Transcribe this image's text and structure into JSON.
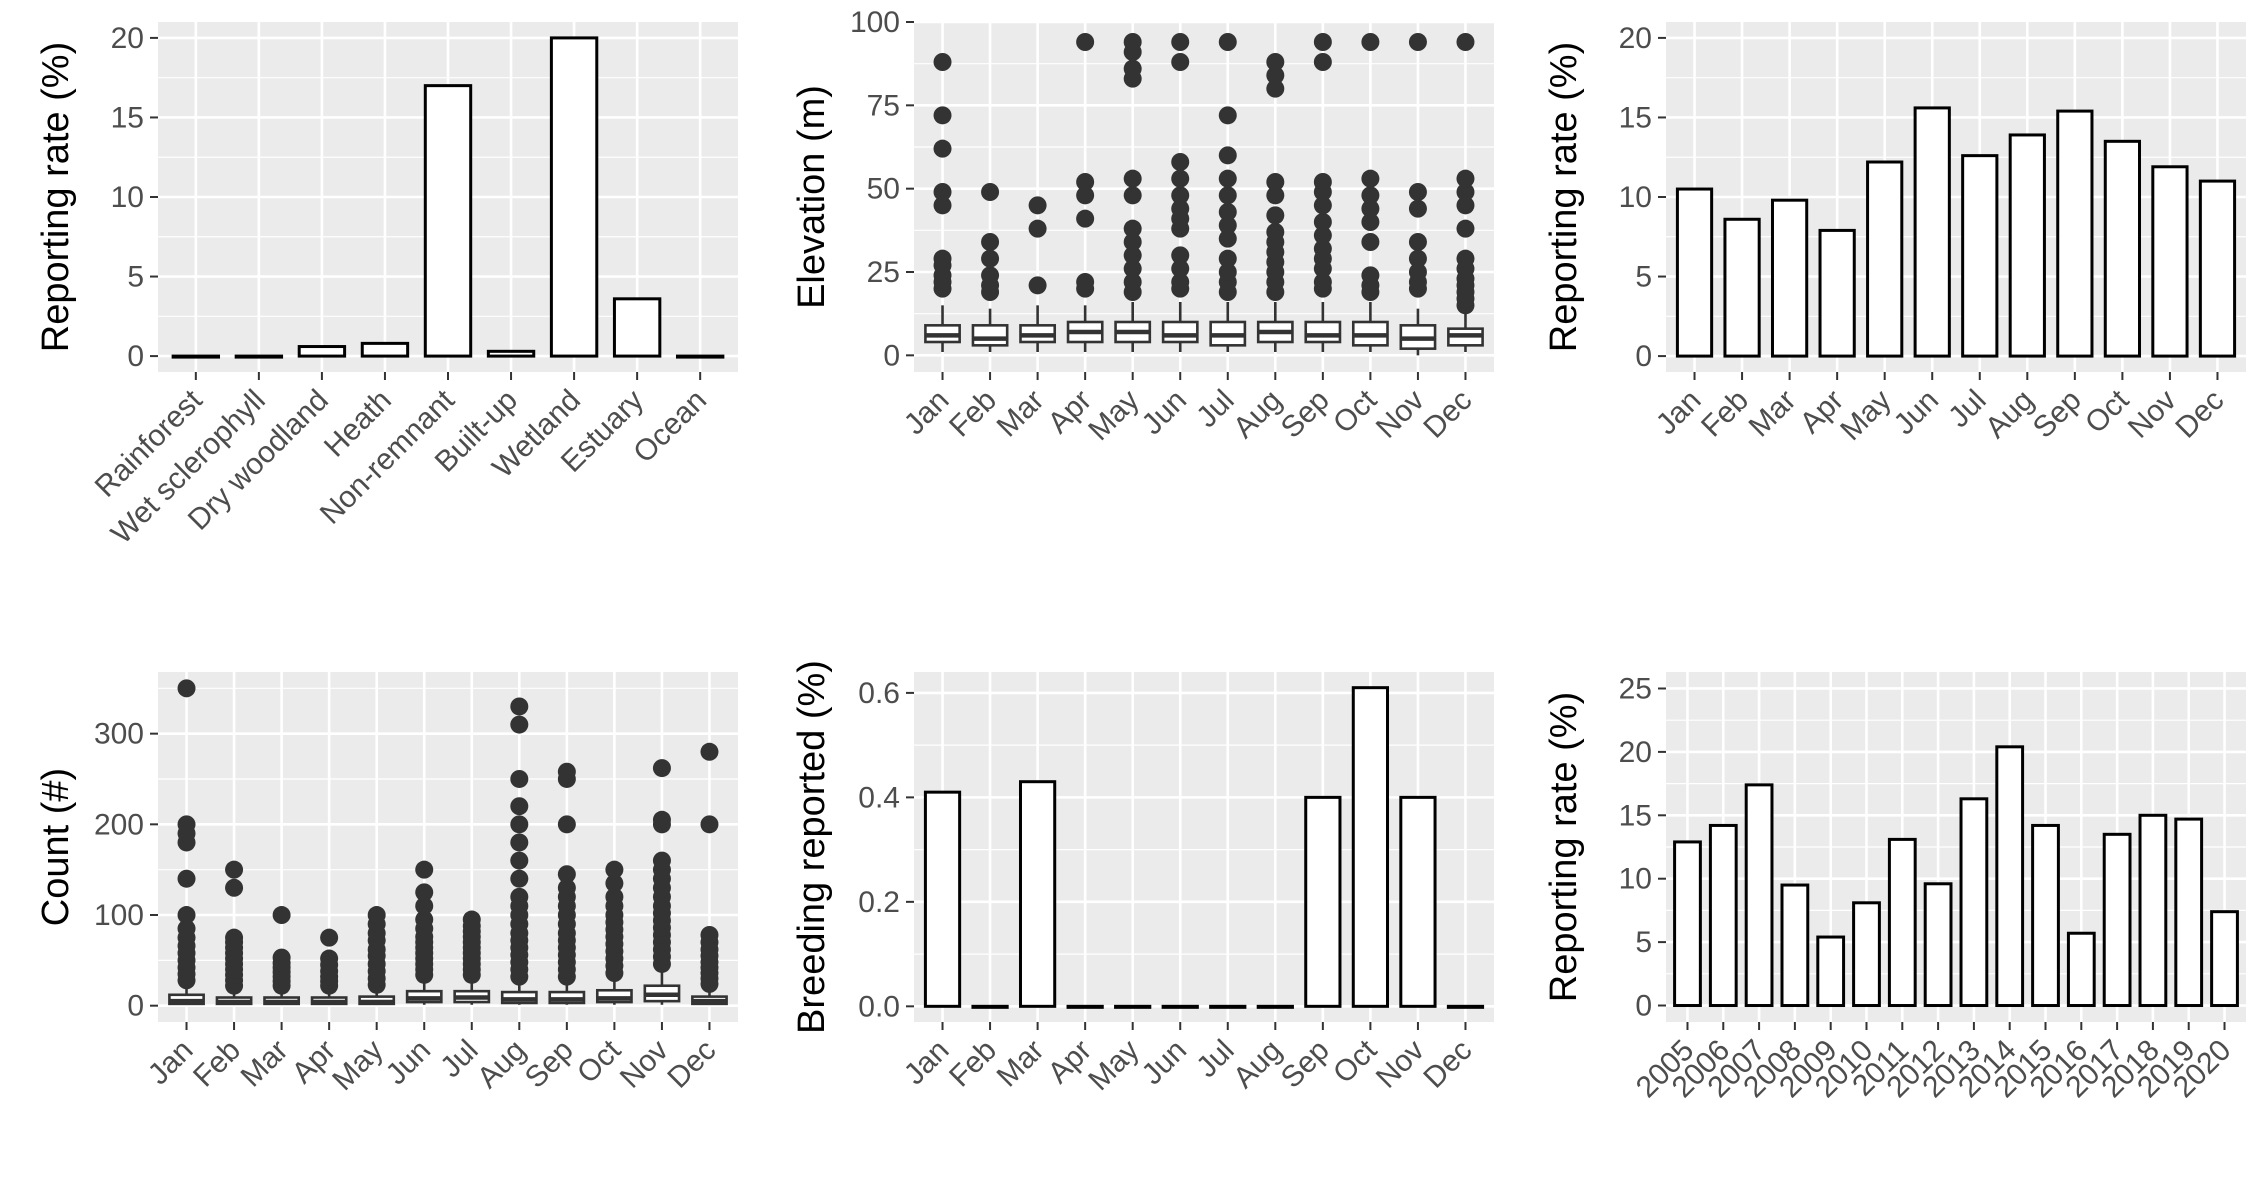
{
  "chart_data": [
    {
      "type": "bar",
      "id": "habitat",
      "ylabel": "Reporting rate (%)",
      "xlabel": "",
      "categories": [
        "Rainforest",
        "Wet sclerophyll",
        "Dry woodland",
        "Heath",
        "Non-remnant",
        "Built-up",
        "Wetland",
        "Estuary",
        "Ocean"
      ],
      "values": [
        0,
        0,
        0.6,
        0.8,
        17,
        0.3,
        20,
        3.6,
        0
      ],
      "ylim": [
        -1,
        21
      ],
      "yticks": [
        0,
        5,
        10,
        15,
        20
      ],
      "ytick_labels": [
        "0",
        "5",
        "10",
        "15",
        "20"
      ],
      "rotate_x_labels": true,
      "grid": true
    },
    {
      "type": "boxplot",
      "id": "elevation",
      "ylabel": "Elevation (m)",
      "xlabel": "",
      "categories": [
        "Jan",
        "Feb",
        "Mar",
        "Apr",
        "May",
        "Jun",
        "Jul",
        "Aug",
        "Sep",
        "Oct",
        "Nov",
        "Dec"
      ],
      "ylim": [
        -5,
        100
      ],
      "yticks": [
        0,
        25,
        50,
        75,
        100
      ],
      "ytick_labels": [
        "0",
        "25",
        "50",
        "75",
        "100"
      ],
      "rotate_x_labels": true,
      "grid": true,
      "boxes": [
        {
          "q1": 4,
          "median": 6,
          "q3": 9,
          "lo": 1,
          "hi": 15,
          "outliers": [
            20,
            22,
            24,
            27,
            29,
            45,
            49,
            62,
            72,
            88
          ]
        },
        {
          "q1": 3,
          "median": 5,
          "q3": 9,
          "lo": 1,
          "hi": 14,
          "outliers": [
            19,
            21,
            24,
            29,
            34,
            49
          ]
        },
        {
          "q1": 4,
          "median": 6,
          "q3": 9,
          "lo": 1,
          "hi": 15,
          "outliers": [
            21,
            38,
            45
          ]
        },
        {
          "q1": 4,
          "median": 7,
          "q3": 10,
          "lo": 1,
          "hi": 15,
          "outliers": [
            20,
            22,
            41,
            48,
            52,
            94
          ]
        },
        {
          "q1": 4,
          "median": 7,
          "q3": 10,
          "lo": 1,
          "hi": 16,
          "outliers": [
            19,
            22,
            26,
            30,
            34,
            38,
            48,
            53,
            83,
            86,
            91,
            94
          ]
        },
        {
          "q1": 4,
          "median": 6,
          "q3": 10,
          "lo": 1,
          "hi": 16,
          "outliers": [
            20,
            22,
            26,
            30,
            38,
            41,
            44,
            48,
            53,
            58,
            88,
            94
          ]
        },
        {
          "q1": 3,
          "median": 6,
          "q3": 10,
          "lo": 1,
          "hi": 16,
          "outliers": [
            19,
            22,
            25,
            29,
            35,
            39,
            43,
            48,
            53,
            60,
            72,
            94
          ]
        },
        {
          "q1": 4,
          "median": 7,
          "q3": 10,
          "lo": 1,
          "hi": 16,
          "outliers": [
            19,
            22,
            25,
            28,
            31,
            34,
            37,
            42,
            48,
            52,
            80,
            84,
            88
          ]
        },
        {
          "q1": 4,
          "median": 6,
          "q3": 10,
          "lo": 1,
          "hi": 16,
          "outliers": [
            20,
            22,
            26,
            29,
            32,
            36,
            40,
            45,
            49,
            52,
            88,
            94
          ]
        },
        {
          "q1": 3,
          "median": 6,
          "q3": 10,
          "lo": 1,
          "hi": 16,
          "outliers": [
            19,
            21,
            24,
            34,
            40,
            44,
            48,
            53,
            94
          ]
        },
        {
          "q1": 2,
          "median": 5,
          "q3": 9,
          "lo": 0,
          "hi": 14,
          "outliers": [
            20,
            22,
            25,
            29,
            34,
            44,
            49,
            94
          ]
        },
        {
          "q1": 3,
          "median": 6,
          "q3": 8,
          "lo": 1,
          "hi": 13,
          "outliers": [
            15,
            17,
            19,
            21,
            23,
            26,
            29,
            38,
            45,
            49,
            53,
            94
          ]
        }
      ]
    },
    {
      "type": "bar",
      "id": "month-reporting",
      "ylabel": "Reporting rate (%)",
      "xlabel": "",
      "categories": [
        "Jan",
        "Feb",
        "Mar",
        "Apr",
        "May",
        "Jun",
        "Jul",
        "Aug",
        "Sep",
        "Oct",
        "Nov",
        "Dec"
      ],
      "values": [
        10.5,
        8.6,
        9.8,
        7.9,
        12.2,
        15.6,
        12.6,
        13.9,
        15.4,
        13.5,
        11.9,
        11.0
      ],
      "ylim": [
        -1,
        21
      ],
      "yticks": [
        0,
        5,
        10,
        15,
        20
      ],
      "ytick_labels": [
        "0",
        "5",
        "10",
        "15",
        "20"
      ],
      "rotate_x_labels": true,
      "grid": true
    },
    {
      "type": "boxplot",
      "id": "count",
      "ylabel": "Count (#)",
      "xlabel": "",
      "categories": [
        "Jan",
        "Feb",
        "Mar",
        "Apr",
        "May",
        "Jun",
        "Jul",
        "Aug",
        "Sep",
        "Oct",
        "Nov",
        "Dec"
      ],
      "ylim": [
        -18,
        368
      ],
      "yticks": [
        0,
        100,
        200,
        300
      ],
      "ytick_labels": [
        "0",
        "100",
        "200",
        "300"
      ],
      "rotate_x_labels": true,
      "grid": true,
      "boxes": [
        {
          "q1": 2,
          "median": 5,
          "q3": 12,
          "lo": 1,
          "hi": 24,
          "outliers": [
            28,
            35,
            42,
            50,
            58,
            66,
            75,
            85,
            100,
            140,
            180,
            190,
            200,
            350
          ]
        },
        {
          "q1": 2,
          "median": 4,
          "q3": 9,
          "lo": 1,
          "hi": 19,
          "outliers": [
            22,
            28,
            34,
            40,
            46,
            52,
            58,
            64,
            70,
            75,
            130,
            150
          ]
        },
        {
          "q1": 2,
          "median": 4,
          "q3": 9,
          "lo": 1,
          "hi": 18,
          "outliers": [
            22,
            27,
            32,
            37,
            42,
            47,
            53,
            100
          ]
        },
        {
          "q1": 2,
          "median": 4,
          "q3": 9,
          "lo": 1,
          "hi": 18,
          "outliers": [
            22,
            27,
            32,
            38,
            45,
            52,
            75
          ]
        },
        {
          "q1": 2,
          "median": 4,
          "q3": 10,
          "lo": 1,
          "hi": 19,
          "outliers": [
            23,
            30,
            38,
            46,
            55,
            62,
            72,
            80,
            90,
            100
          ]
        },
        {
          "q1": 4,
          "median": 8,
          "q3": 16,
          "lo": 1,
          "hi": 30,
          "outliers": [
            34,
            40,
            46,
            52,
            58,
            64,
            70,
            76,
            85,
            95,
            110,
            125,
            150
          ]
        },
        {
          "q1": 4,
          "median": 9,
          "q3": 16,
          "lo": 1,
          "hi": 30,
          "outliers": [
            34,
            40,
            46,
            52,
            58,
            64,
            70,
            76,
            82,
            88,
            95
          ]
        },
        {
          "q1": 3,
          "median": 7,
          "q3": 15,
          "lo": 1,
          "hi": 28,
          "outliers": [
            32,
            40,
            48,
            56,
            64,
            72,
            80,
            90,
            100,
            110,
            120,
            140,
            160,
            180,
            200,
            220,
            250,
            310,
            330
          ]
        },
        {
          "q1": 3,
          "median": 7,
          "q3": 15,
          "lo": 1,
          "hi": 28,
          "outliers": [
            32,
            40,
            48,
            56,
            64,
            72,
            80,
            90,
            100,
            110,
            120,
            130,
            145,
            200,
            250,
            258
          ]
        },
        {
          "q1": 4,
          "median": 8,
          "q3": 17,
          "lo": 1,
          "hi": 32,
          "outliers": [
            36,
            44,
            52,
            60,
            68,
            76,
            84,
            92,
            100,
            110,
            120,
            135,
            150
          ]
        },
        {
          "q1": 5,
          "median": 12,
          "q3": 22,
          "lo": 1,
          "hi": 42,
          "outliers": [
            46,
            54,
            62,
            70,
            78,
            86,
            94,
            102,
            110,
            120,
            130,
            140,
            150,
            160,
            200,
            205,
            262
          ]
        },
        {
          "q1": 2,
          "median": 5,
          "q3": 10,
          "lo": 1,
          "hi": 20,
          "outliers": [
            24,
            30,
            36,
            42,
            48,
            55,
            62,
            70,
            78,
            200,
            280
          ]
        }
      ]
    },
    {
      "type": "bar",
      "id": "breeding",
      "ylabel": "Breeding reported (%)",
      "xlabel": "",
      "categories": [
        "Jan",
        "Feb",
        "Mar",
        "Apr",
        "May",
        "Jun",
        "Jul",
        "Aug",
        "Sep",
        "Oct",
        "Nov",
        "Dec"
      ],
      "values": [
        0.41,
        0,
        0.43,
        0,
        0,
        0,
        0,
        0,
        0.4,
        0.61,
        0.4,
        0
      ],
      "ylim": [
        -0.03,
        0.64
      ],
      "yticks": [
        0.0,
        0.2,
        0.4,
        0.6
      ],
      "ytick_labels": [
        "0.0",
        "0.2",
        "0.4",
        "0.6"
      ],
      "rotate_x_labels": true,
      "grid": true
    },
    {
      "type": "bar",
      "id": "year-reporting",
      "ylabel": "Reporting rate (%)",
      "xlabel": "",
      "categories": [
        "2005",
        "2006",
        "2007",
        "2008",
        "2009",
        "2010",
        "2011",
        "2012",
        "2013",
        "2014",
        "2015",
        "2016",
        "2017",
        "2018",
        "2019",
        "2020"
      ],
      "values": [
        12.9,
        14.2,
        17.4,
        9.5,
        5.4,
        8.1,
        13.1,
        9.6,
        16.3,
        20.4,
        14.2,
        5.7,
        13.5,
        15.0,
        14.7,
        7.4
      ],
      "ylim": [
        -1.3,
        26.3
      ],
      "yticks": [
        0,
        5,
        10,
        15,
        20,
        25
      ],
      "ytick_labels": [
        "0",
        "5",
        "10",
        "15",
        "20",
        "25"
      ],
      "rotate_x_labels": true,
      "grid": true
    }
  ]
}
